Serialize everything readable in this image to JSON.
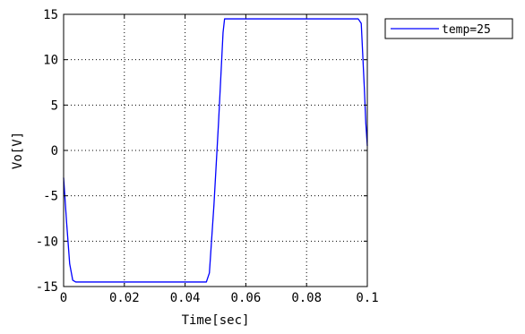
{
  "chart_data": {
    "type": "line",
    "xlabel": "Time[sec]",
    "ylabel": "Vo[V]",
    "xlim": [
      0,
      0.1
    ],
    "ylim": [
      -15,
      15
    ],
    "xticks": [
      0,
      0.02,
      0.04,
      0.06,
      0.08,
      0.1
    ],
    "yticks": [
      -15,
      -10,
      -5,
      0,
      5,
      10,
      15
    ],
    "xtick_labels": [
      "0",
      "0.02",
      "0.04",
      "0.06",
      "0.08",
      "0.1"
    ],
    "ytick_labels": [
      "-15",
      "-10",
      "-5",
      "0",
      "5",
      "10",
      "15"
    ],
    "grid": true,
    "legend_position": "outside-top-right",
    "series": [
      {
        "name": "temp=25",
        "color": "#0000ff",
        "x": [
          0,
          0.001,
          0.002,
          0.003,
          0.004,
          0.047,
          0.048,
          0.0495,
          0.051,
          0.0525,
          0.053,
          0.097,
          0.098,
          0.099,
          0.0995,
          0.1
        ],
        "y": [
          -3,
          -8,
          -12.5,
          -14.3,
          -14.5,
          -14.5,
          -13.5,
          -6,
          3,
          13,
          14.5,
          14.5,
          14.0,
          7,
          3,
          0.5
        ]
      }
    ]
  }
}
